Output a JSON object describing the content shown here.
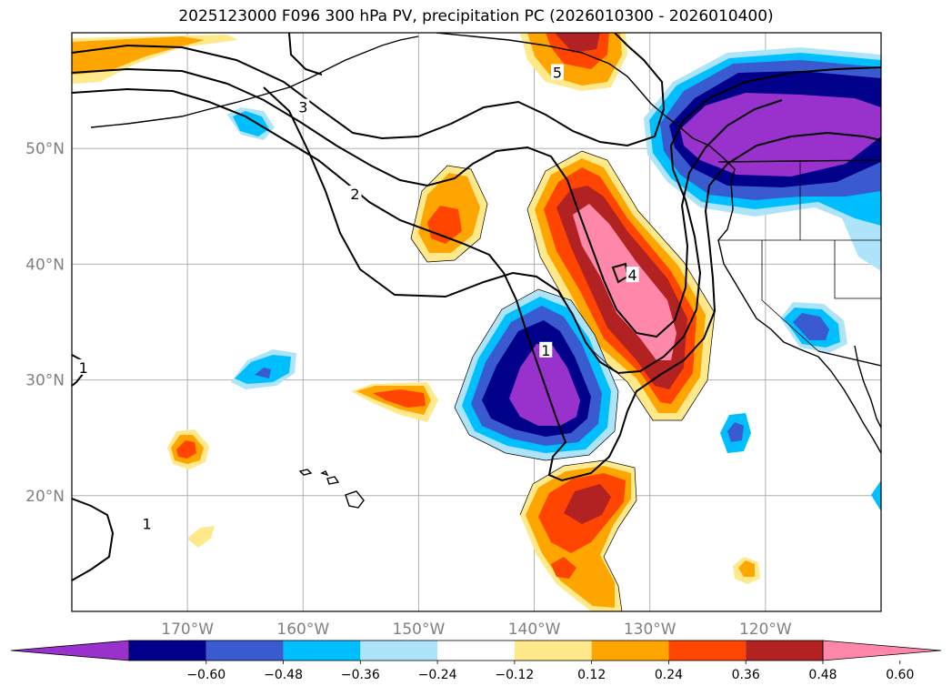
{
  "chart_data": {
    "type": "map-contour",
    "title": "2025123000 F096 300 hPa PV, precipitation PC (2026010300 - 2026010400)",
    "extent": {
      "lon_min": -180,
      "lon_max": -110,
      "lat_min": 10,
      "lat_max": 60
    },
    "lat_ticks": [
      {
        "value": 20,
        "label": "20°N"
      },
      {
        "value": 30,
        "label": "30°N"
      },
      {
        "value": 40,
        "label": "40°N"
      },
      {
        "value": 50,
        "label": "50°N"
      }
    ],
    "lon_ticks": [
      {
        "value": -170,
        "label": "170°W"
      },
      {
        "value": -160,
        "label": "160°W"
      },
      {
        "value": -150,
        "label": "150°W"
      },
      {
        "value": -140,
        "label": "140°W"
      },
      {
        "value": -130,
        "label": "130°W"
      },
      {
        "value": -120,
        "label": "120°W"
      }
    ],
    "colorbar": {
      "levels": [
        "−0.60",
        "−0.48",
        "−0.36",
        "−0.24",
        "−0.12",
        "0.12",
        "0.24",
        "0.36",
        "0.48",
        "0.60"
      ],
      "colors": [
        "#9932CC",
        "#00008B",
        "#3A5BCF",
        "#00BFFF",
        "#AEE4FA",
        "#FFFFFF",
        "#FFE98A",
        "#FFA500",
        "#FF4500",
        "#B22222",
        "#FF88AA"
      ]
    },
    "pv_contour_labels": [
      {
        "value": "1",
        "lon": -179,
        "lat": 31
      },
      {
        "value": "1",
        "lon": -173.5,
        "lat": 17.5
      },
      {
        "value": "1",
        "lon": -139,
        "lat": 32.5
      },
      {
        "value": "2",
        "lon": -155.5,
        "lat": 46
      },
      {
        "value": "3",
        "lon": -160,
        "lat": 53.5
      },
      {
        "value": "4",
        "lon": -131.5,
        "lat": 39
      },
      {
        "value": "5",
        "lon": -138,
        "lat": 56.5
      }
    ]
  }
}
